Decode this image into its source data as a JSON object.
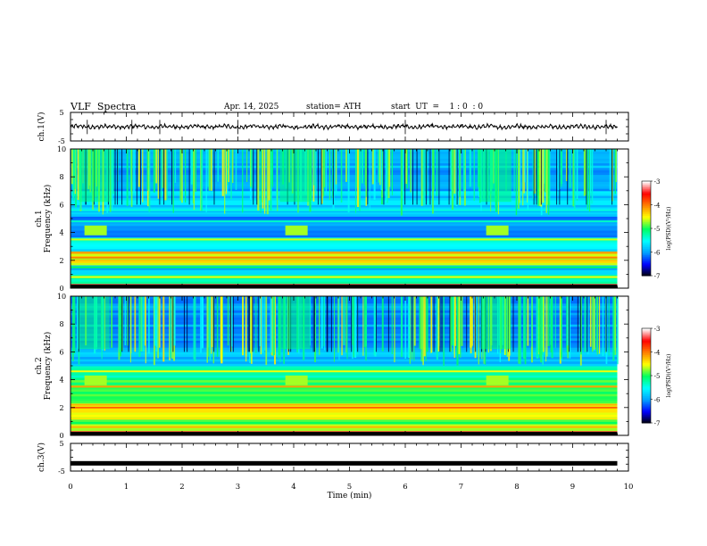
{
  "header": {
    "title": "VLF  Spectra",
    "date": "Apr. 14, 2025",
    "station": "station= ATH",
    "start_ut": "start  UT  =    1 : 0  : 0"
  },
  "chart_data": [
    {
      "type": "line",
      "panel": "waveform-ch1",
      "ylabel": "ch.1(V)",
      "yticks": [
        "5",
        "-5"
      ],
      "ylim": [
        -5,
        5
      ],
      "xlim": [
        0,
        10
      ],
      "series": [
        {
          "values_note_mean": 0,
          "mean": 0.0,
          "amplitude": 1.2,
          "spikes": [
            0.3,
            1.1,
            1.6,
            3.0,
            6.0,
            9.6
          ]
        }
      ]
    },
    {
      "type": "heatmap",
      "panel": "spectrogram-ch1",
      "ylabel": "ch.1\nFrequency  (kHz)",
      "yticks": [
        "0",
        "2",
        "4",
        "6",
        "8",
        "10"
      ],
      "ylim": [
        0,
        10
      ],
      "xlim": [
        0,
        9.8
      ],
      "colorbar": {
        "label": "log(PSD)(V²/Hz)",
        "ticks": [
          "-3",
          "-4",
          "-5",
          "-6",
          "-7"
        ],
        "range": [
          -7,
          -3
        ]
      },
      "bursts": [
        {
          "t_start": 0.25,
          "t_end": 0.65,
          "f_low": 3.8,
          "f_high": 4.5
        },
        {
          "t_start": 3.85,
          "t_end": 4.25,
          "f_low": 3.8,
          "f_high": 4.5
        },
        {
          "t_start": 7.45,
          "t_end": 7.85,
          "f_low": 3.8,
          "f_high": 4.5
        }
      ],
      "noise_band_top_khz": 10
    },
    {
      "type": "heatmap",
      "panel": "spectrogram-ch2",
      "ylabel": "ch.2\nFrequency  (kHz)",
      "yticks": [
        "0",
        "2",
        "4",
        "6",
        "8",
        "10"
      ],
      "ylim": [
        0,
        10
      ],
      "xlim": [
        0,
        9.8
      ],
      "colorbar": {
        "label": "log(PSD)(V²/Hz)",
        "ticks": [
          "-3",
          "-4",
          "-5",
          "-6",
          "-7"
        ],
        "range": [
          -7,
          -3
        ]
      },
      "bursts": [
        {
          "t_start": 0.25,
          "t_end": 0.65,
          "f_low": 3.6,
          "f_high": 4.3
        },
        {
          "t_start": 3.85,
          "t_end": 4.25,
          "f_low": 3.6,
          "f_high": 4.3
        },
        {
          "t_start": 7.45,
          "t_end": 7.85,
          "f_low": 3.6,
          "f_high": 4.3
        }
      ]
    },
    {
      "type": "line",
      "panel": "waveform-ch3",
      "ylabel": "ch.3(V)",
      "yticks": [
        "5",
        "-5"
      ],
      "ylim": [
        -5,
        5
      ],
      "xlim": [
        0,
        10
      ],
      "series": [
        {
          "mean": -2.2,
          "amplitude": 0.2
        }
      ],
      "xlabel": "Time  (min)",
      "xticks": [
        "0",
        "1",
        "2",
        "3",
        "4",
        "5",
        "6",
        "7",
        "8",
        "9",
        "10"
      ]
    }
  ],
  "colors": {
    "scale": [
      "#000000",
      "#0000ff",
      "#00a0ff",
      "#00ffff",
      "#00ff60",
      "#ffff00",
      "#ff8000",
      "#ff0000",
      "#ffffff"
    ]
  }
}
